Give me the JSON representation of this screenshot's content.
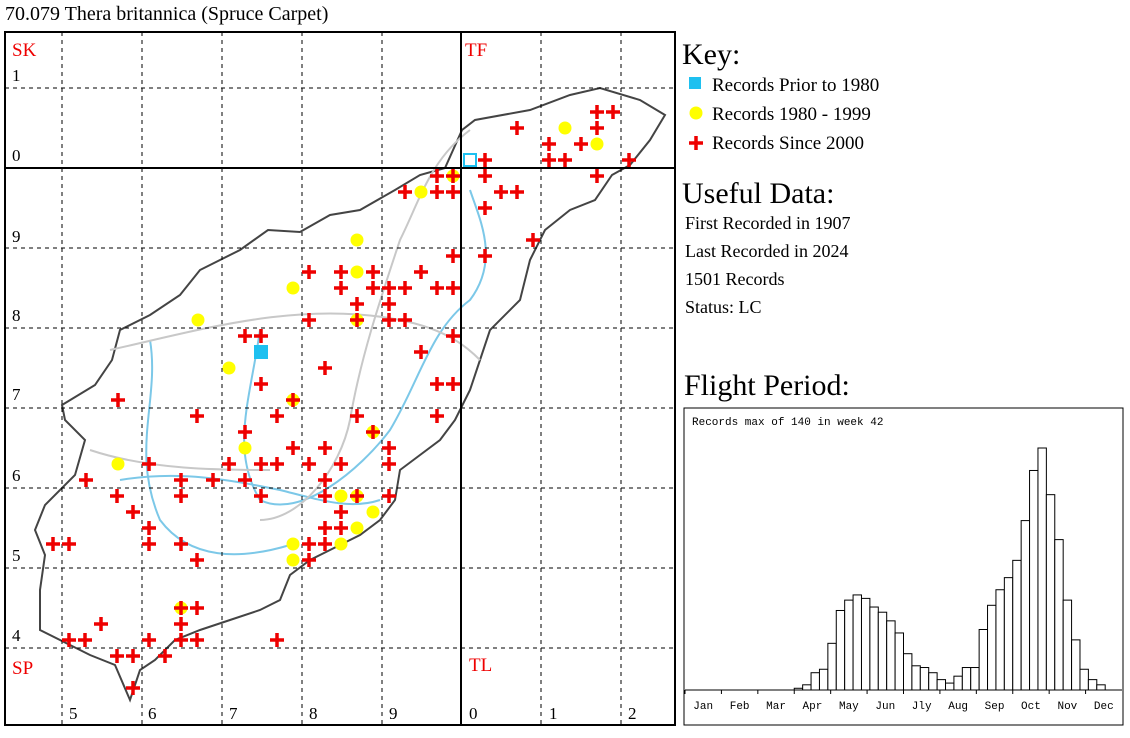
{
  "title": "70.079 Thera britannica (Spruce Carpet)",
  "map": {
    "square_labels": [
      "SK",
      "TF",
      "SP",
      "TL"
    ],
    "row_labels": [
      "1",
      "0",
      "9",
      "8",
      "7",
      "6",
      "5",
      "4"
    ],
    "column_labels": [
      "5",
      "6",
      "7",
      "8",
      "9",
      "0",
      "1",
      "2"
    ]
  },
  "key": {
    "heading": "Key:",
    "items": [
      "Records Prior to 1980",
      "Records 1980 - 1999",
      "Records Since 2000"
    ]
  },
  "useful_data": {
    "heading": "Useful Data:",
    "lines": [
      "First Recorded in 1907",
      "Last Recorded in 2024",
      "1501 Records",
      "Status: LC"
    ]
  },
  "flight_chart": {
    "type": "bar",
    "heading": "Flight Period:",
    "note": "Records max of 140 in week 42",
    "months": [
      "Jan",
      "Feb",
      "Mar",
      "Apr",
      "May",
      "Jun",
      "Jly",
      "Aug",
      "Sep",
      "Oct",
      "Nov",
      "Dec"
    ],
    "values": [
      0,
      0,
      0,
      0,
      0,
      0,
      0,
      0,
      0,
      0,
      0,
      0,
      0,
      1,
      3,
      10,
      12,
      27,
      46,
      52,
      55,
      53,
      48,
      45,
      40,
      33,
      21,
      14,
      13,
      10,
      6,
      4,
      8,
      13,
      13,
      35,
      49,
      58,
      65,
      75,
      98,
      127,
      140,
      113,
      87,
      52,
      29,
      12,
      6,
      3,
      0,
      0
    ],
    "ylim": [
      0,
      140
    ],
    "color": "#ffffff"
  }
}
